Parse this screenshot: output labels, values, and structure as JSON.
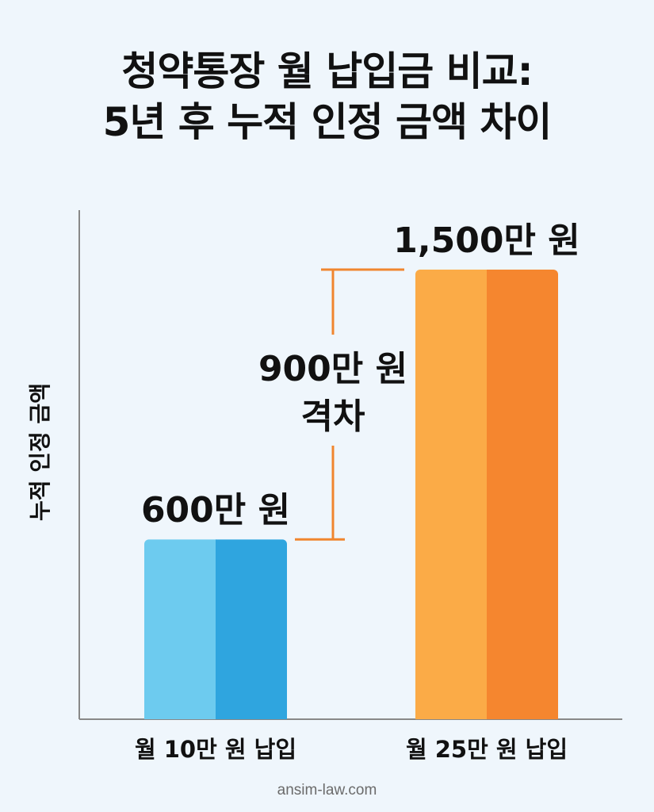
{
  "title": {
    "line1": "청약통장 월 납입금 비교:",
    "line2": "5년 후 누적 인정 금액 차이"
  },
  "footer": {
    "site": "ansim-law.com"
  },
  "chart_data": {
    "type": "bar",
    "title": "청약통장 월 납입금 비교: 5년 후 누적 인정 금액 차이",
    "ylabel": "누적 인정 금액",
    "xlabel": "",
    "unit": "만 원",
    "categories": [
      "월 10만 원 납입",
      "월 25만 원 납입"
    ],
    "values": [
      600,
      1500
    ],
    "value_labels": [
      "600만 원",
      "1,500만 원"
    ],
    "ylim": [
      0,
      1700
    ],
    "grid": false,
    "colors": {
      "bar1_light": "#6dcbef",
      "bar1_dark": "#2fa5df",
      "bar2_light": "#fbab47",
      "bar2_dark": "#f5862f",
      "gap_bracket": "#f0862f",
      "axis": "#888888"
    },
    "annotation": {
      "line1": "900만 원",
      "line2": "격차",
      "difference": 900
    }
  }
}
